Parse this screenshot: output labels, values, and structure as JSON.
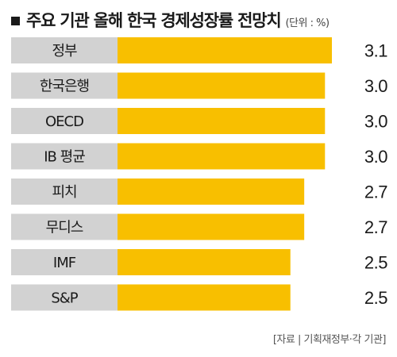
{
  "header": {
    "title": "주요 기관 올해 한국 경제성장률 전망치",
    "unit": "(단위 : %)"
  },
  "colors": {
    "label_box": "#d2d2d2",
    "bar": "#f8bf00",
    "text": "#1a1a1a"
  },
  "chart_data": {
    "type": "bar",
    "orientation": "horizontal",
    "title": "주요 기관 올해 한국 경제성장률 전망치",
    "unit": "(단위 : %)",
    "categories": [
      "정부",
      "한국은행",
      "OECD",
      "IB 평균",
      "피치",
      "무디스",
      "IMF",
      "S&P"
    ],
    "values": [
      3.1,
      3.0,
      3.0,
      3.0,
      2.7,
      2.7,
      2.5,
      2.5
    ],
    "value_labels": [
      "3.1",
      "3.0",
      "3.0",
      "3.0",
      "2.7",
      "2.7",
      "2.5",
      "2.5"
    ],
    "xlim": [
      0,
      3.1
    ],
    "grid": false,
    "legend": "none"
  },
  "footer": {
    "source": "[자료 | 기획재정부·각 기관]"
  }
}
